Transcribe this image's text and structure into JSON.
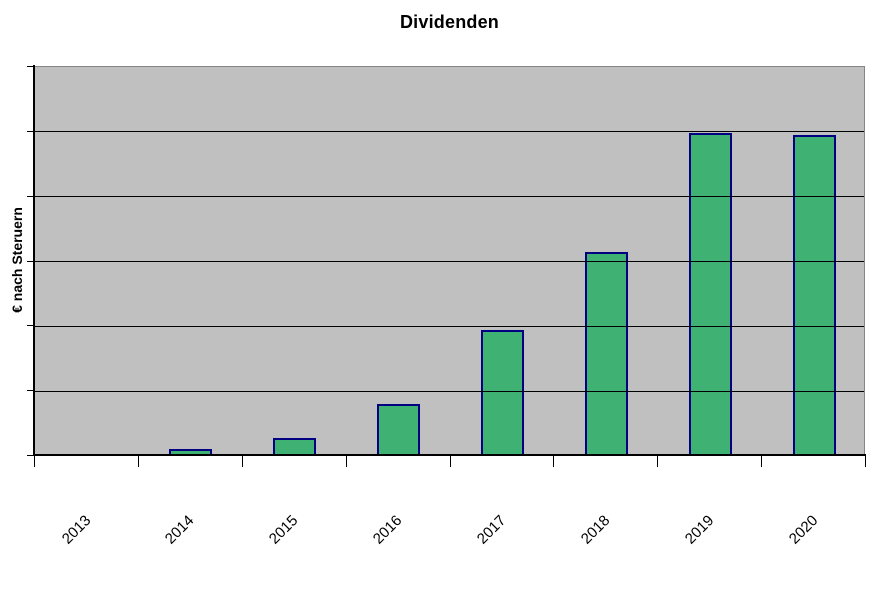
{
  "chart_data": {
    "type": "bar",
    "title": "Dividenden",
    "xlabel": "",
    "ylabel": "€ nach Steruern",
    "categories": [
      "2013",
      "2014",
      "2015",
      "2016",
      "2017",
      "2018",
      "2019",
      "2020"
    ],
    "values": [
      0,
      0.08,
      0.25,
      0.77,
      1.92,
      3.11,
      4.95,
      4.92
    ],
    "values_note": "y axis shows no numeric tick labels; values are estimated in gridline units (1 unit = one horizontal gridline interval, axis maximum = 6 units)",
    "ylim": [
      0,
      6
    ],
    "gridlines": 6,
    "grid": "horizontal-only, drawn over bars",
    "y_tick_labels": "none",
    "x_tick_label_rotation_deg": 45,
    "legend": "none",
    "colors": {
      "bar_fill": "#3fb173",
      "bar_border": "#000080",
      "plot_background": "#c0c0c0",
      "plot_border": "#858585",
      "gridline": "#000000",
      "axis": "#000000",
      "page_background": "#ffffff",
      "text": "#000000"
    }
  }
}
